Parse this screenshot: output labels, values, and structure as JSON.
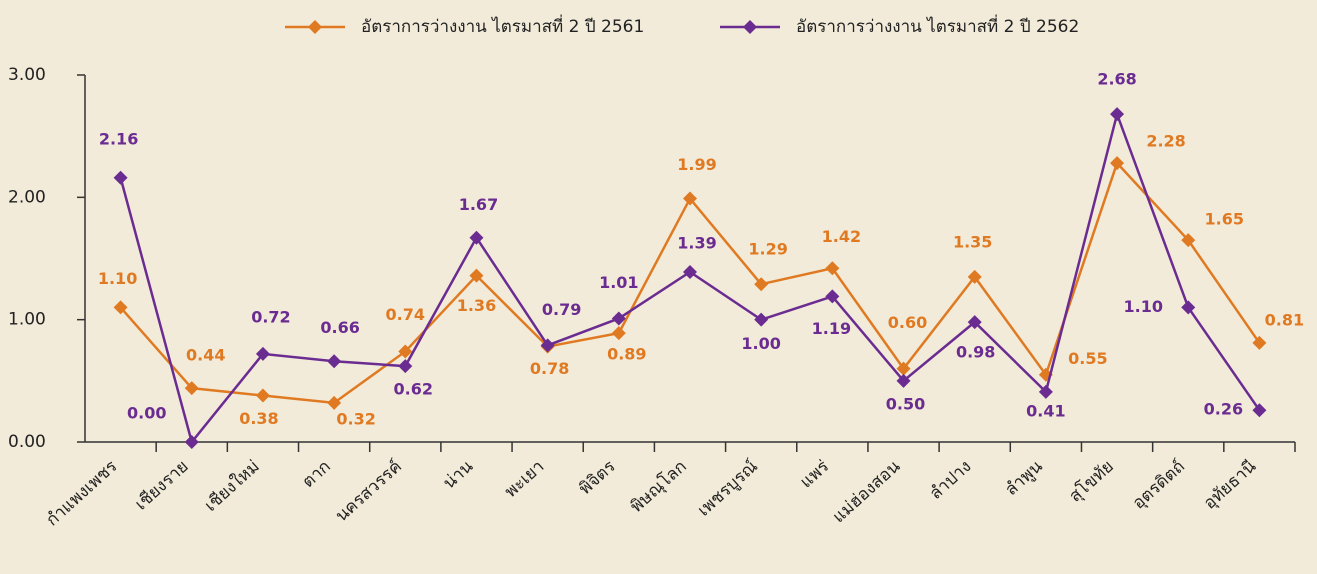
{
  "chart_data": {
    "type": "line",
    "categories": [
      "กำแพงเพชร",
      "เชียงราย",
      "เชียงใหม่",
      "ตาก",
      "นครสวรรค์",
      "น่าน",
      "พะเยา",
      "พิจิตร",
      "พิษณุโลก",
      "เพชรบูรณ์",
      "แพร่",
      "แม่ฮ่องสอน",
      "ลำปาง",
      "ลำพูน",
      "สุโขทัย",
      "อุตรดิตถ์",
      "อุทัยธานี"
    ],
    "series": [
      {
        "name": "อัตราการว่างงาน ไตรมาสที่ 2 ปี 2561",
        "color": "#e07a22",
        "values": [
          1.1,
          0.44,
          0.38,
          0.32,
          0.74,
          1.36,
          0.78,
          0.89,
          1.99,
          1.29,
          1.42,
          0.6,
          1.35,
          0.55,
          2.28,
          1.65,
          0.81
        ],
        "value_labels": [
          "1.10",
          "0.44",
          "0.38",
          "0.32",
          "0.74",
          "1.36",
          "0.78",
          "0.89",
          "1.99",
          "1.29",
          "1.42",
          "0.60",
          "1.35",
          "0.55",
          "2.28",
          "1.65",
          "0.81"
        ]
      },
      {
        "name": "อัตราการว่างงาน ไตรมาสที่ 2 ปี 2562",
        "color": "#6b2c91",
        "values": [
          2.16,
          0.0,
          0.72,
          0.66,
          0.62,
          1.67,
          0.79,
          1.01,
          1.39,
          1.0,
          1.19,
          0.5,
          0.98,
          0.41,
          2.68,
          1.1,
          0.26
        ],
        "value_labels": [
          "2.16",
          "0.00",
          "0.72",
          "0.66",
          "0.62",
          "1.67",
          "0.79",
          "1.01",
          "1.39",
          "1.00",
          "1.19",
          "0.50",
          "0.98",
          "0.41",
          "2.68",
          "1.10",
          "0.26"
        ]
      }
    ],
    "ylim": [
      0,
      3
    ],
    "yticks": [
      {
        "value": 0,
        "label": "0.00"
      },
      {
        "value": 1,
        "label": "1.00"
      },
      {
        "value": 2,
        "label": "2.00"
      },
      {
        "value": 3,
        "label": "3.00"
      }
    ],
    "legend": "top"
  }
}
